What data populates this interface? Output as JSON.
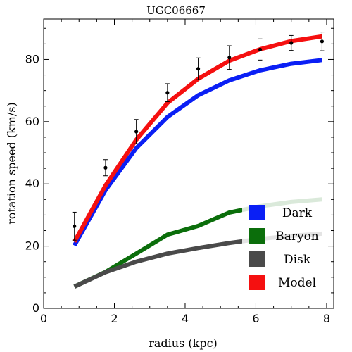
{
  "chart_data": {
    "type": "line",
    "title": "UGC06667",
    "xlabel": "radius (kpc)",
    "ylabel": "rotation speed (km/s)",
    "xlim": [
      0,
      8.2
    ],
    "ylim": [
      0,
      93
    ],
    "xticks": [
      0,
      2,
      4,
      6,
      8
    ],
    "yticks": [
      0,
      20,
      40,
      60,
      80
    ],
    "grid": false,
    "legend_position": "bottom-right",
    "x": [
      0.87,
      1.75,
      2.62,
      3.5,
      4.37,
      5.25,
      6.12,
      7.0,
      7.87
    ],
    "series": [
      {
        "name": "Dark",
        "color": "#0a1ff5",
        "values": [
          20.2,
          38.0,
          51.5,
          61.5,
          68.5,
          73.3,
          76.5,
          78.6,
          79.8
        ]
      },
      {
        "name": "Baryon",
        "color": "#0b6e0b",
        "values": [
          7.0,
          11.7,
          17.6,
          23.7,
          26.5,
          30.8,
          32.8,
          34.2,
          35.0
        ]
      },
      {
        "name": "Disk",
        "color": "#4a4a4a",
        "values": [
          7.0,
          11.6,
          15.0,
          17.6,
          19.4,
          21.0,
          22.3,
          23.3,
          24.0
        ]
      },
      {
        "name": "Model",
        "color": "#f51010",
        "values": [
          21.4,
          39.5,
          54.2,
          66.0,
          73.8,
          79.6,
          83.3,
          85.9,
          87.4
        ]
      }
    ],
    "observed": {
      "y": [
        26.4,
        45.2,
        56.8,
        69.3,
        77.0,
        80.6,
        83.2,
        85.3,
        85.8
      ],
      "err": [
        4.5,
        2.6,
        3.9,
        2.9,
        3.5,
        3.8,
        3.4,
        2.4,
        3.0
      ]
    }
  }
}
